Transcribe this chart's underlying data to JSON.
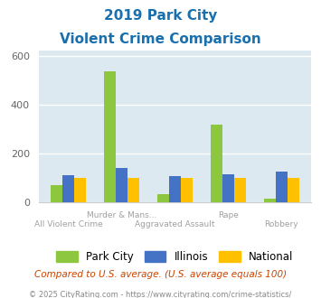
{
  "title_line1": "2019 Park City",
  "title_line2": "Violent Crime Comparison",
  "categories": [
    "All Violent Crime",
    "Murder & Mans...",
    "Aggravated Assault",
    "Rape",
    "Robbery"
  ],
  "park_city": [
    70,
    537,
    35,
    318,
    18
  ],
  "illinois": [
    113,
    140,
    108,
    115,
    128
  ],
  "national": [
    100,
    100,
    100,
    100,
    100
  ],
  "colors": {
    "park_city": "#8dc63f",
    "illinois": "#4472c4",
    "national": "#ffc000"
  },
  "ylim": [
    0,
    620
  ],
  "yticks": [
    0,
    200,
    400,
    600
  ],
  "background_color": "#dce9f0",
  "grid_color": "#ffffff",
  "title_color": "#1a6fad",
  "xlabel_color": "#a0a0a0",
  "legend_labels": [
    "Park City",
    "Illinois",
    "National"
  ],
  "note": "Compared to U.S. average. (U.S. average equals 100)",
  "footer": "© 2025 CityRating.com - https://www.cityrating.com/crime-statistics/",
  "note_color": "#cc4400",
  "footer_color": "#888888"
}
